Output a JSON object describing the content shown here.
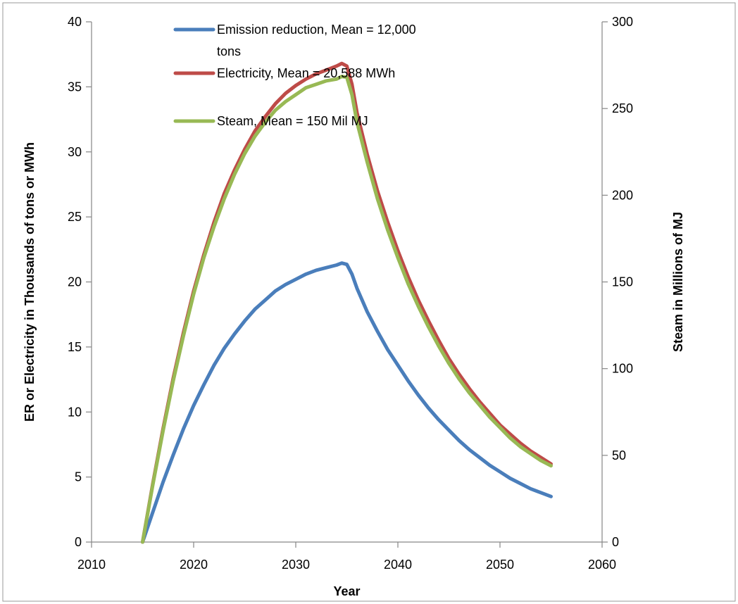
{
  "chart_data": {
    "type": "line",
    "xlabel": "Year",
    "ylabel": "ER or Electricity in Thousands of tons or MWh",
    "y2label": "Steam in Millions of MJ",
    "xlim": [
      2010,
      2060
    ],
    "ylim": [
      0,
      40
    ],
    "y2lim": [
      0,
      300
    ],
    "x_ticks": [
      2010,
      2020,
      2030,
      2040,
      2050,
      2060
    ],
    "y_ticks": [
      0,
      5,
      10,
      15,
      20,
      25,
      30,
      35,
      40
    ],
    "y2_ticks": [
      0,
      50,
      100,
      150,
      200,
      250,
      300
    ],
    "grid": false,
    "legend_position": "top-center",
    "series": [
      {
        "name": "Emission reduction, Mean = 12,000 tons",
        "axis": "left",
        "color": "#4A7EBB",
        "x": [
          2015,
          2016,
          2017,
          2018,
          2019,
          2020,
          2021,
          2022,
          2023,
          2024,
          2025,
          2026,
          2027,
          2028,
          2029,
          2030,
          2031,
          2032,
          2033,
          2034,
          2034.5,
          2035,
          2035.5,
          2036,
          2037,
          2038,
          2039,
          2040,
          2041,
          2042,
          2043,
          2044,
          2045,
          2046,
          2047,
          2048,
          2049,
          2050,
          2051,
          2052,
          2053,
          2054,
          2055
        ],
        "values": [
          0,
          2.3,
          4.6,
          6.7,
          8.7,
          10.5,
          12.1,
          13.6,
          14.9,
          16.0,
          17.0,
          17.9,
          18.6,
          19.3,
          19.8,
          20.2,
          20.6,
          20.9,
          21.1,
          21.3,
          21.45,
          21.35,
          20.6,
          19.5,
          17.7,
          16.2,
          14.8,
          13.6,
          12.4,
          11.3,
          10.3,
          9.4,
          8.6,
          7.8,
          7.1,
          6.5,
          5.9,
          5.4,
          4.9,
          4.5,
          4.1,
          3.8,
          3.5
        ]
      },
      {
        "name": "Electricity, Mean = 20,588 MWh",
        "axis": "left",
        "color": "#BE4B48",
        "x": [
          2015,
          2016,
          2017,
          2018,
          2019,
          2020,
          2021,
          2022,
          2023,
          2024,
          2025,
          2026,
          2027,
          2028,
          2029,
          2030,
          2031,
          2032,
          2033,
          2034,
          2034.5,
          2035,
          2035.5,
          2036,
          2037,
          2038,
          2039,
          2040,
          2041,
          2042,
          2043,
          2044,
          2045,
          2046,
          2047,
          2048,
          2049,
          2050,
          2051,
          2052,
          2053,
          2054,
          2055
        ],
        "values": [
          0,
          4.5,
          8.7,
          12.6,
          16.1,
          19.3,
          22.1,
          24.6,
          26.8,
          28.6,
          30.2,
          31.6,
          32.7,
          33.7,
          34.5,
          35.1,
          35.6,
          36.0,
          36.3,
          36.6,
          36.8,
          36.6,
          35.2,
          33.0,
          29.8,
          27.0,
          24.6,
          22.4,
          20.4,
          18.6,
          17.0,
          15.5,
          14.1,
          12.9,
          11.8,
          10.8,
          9.9,
          9.0,
          8.3,
          7.6,
          7.0,
          6.5,
          6.0
        ]
      },
      {
        "name": "Steam, Mean = 150 Mil MJ",
        "axis": "right",
        "color": "#98B954",
        "x": [
          2015,
          2016,
          2017,
          2018,
          2019,
          2020,
          2021,
          2022,
          2023,
          2024,
          2025,
          2026,
          2027,
          2028,
          2029,
          2030,
          2031,
          2032,
          2033,
          2034,
          2034.5,
          2035,
          2035.5,
          2036,
          2037,
          2038,
          2039,
          2040,
          2041,
          2042,
          2043,
          2044,
          2045,
          2046,
          2047,
          2048,
          2049,
          2050,
          2051,
          2052,
          2053,
          2054,
          2055
        ],
        "values": [
          0,
          33,
          64,
          93,
          119,
          143,
          164,
          182,
          198,
          212,
          224,
          234,
          242,
          249,
          254,
          258,
          262,
          264,
          266,
          267,
          268.5,
          268,
          258,
          242,
          219,
          198,
          180,
          164,
          149,
          136,
          124,
          113,
          103,
          94,
          86,
          79,
          72,
          66,
          60,
          55,
          51,
          47,
          44
        ]
      }
    ]
  }
}
